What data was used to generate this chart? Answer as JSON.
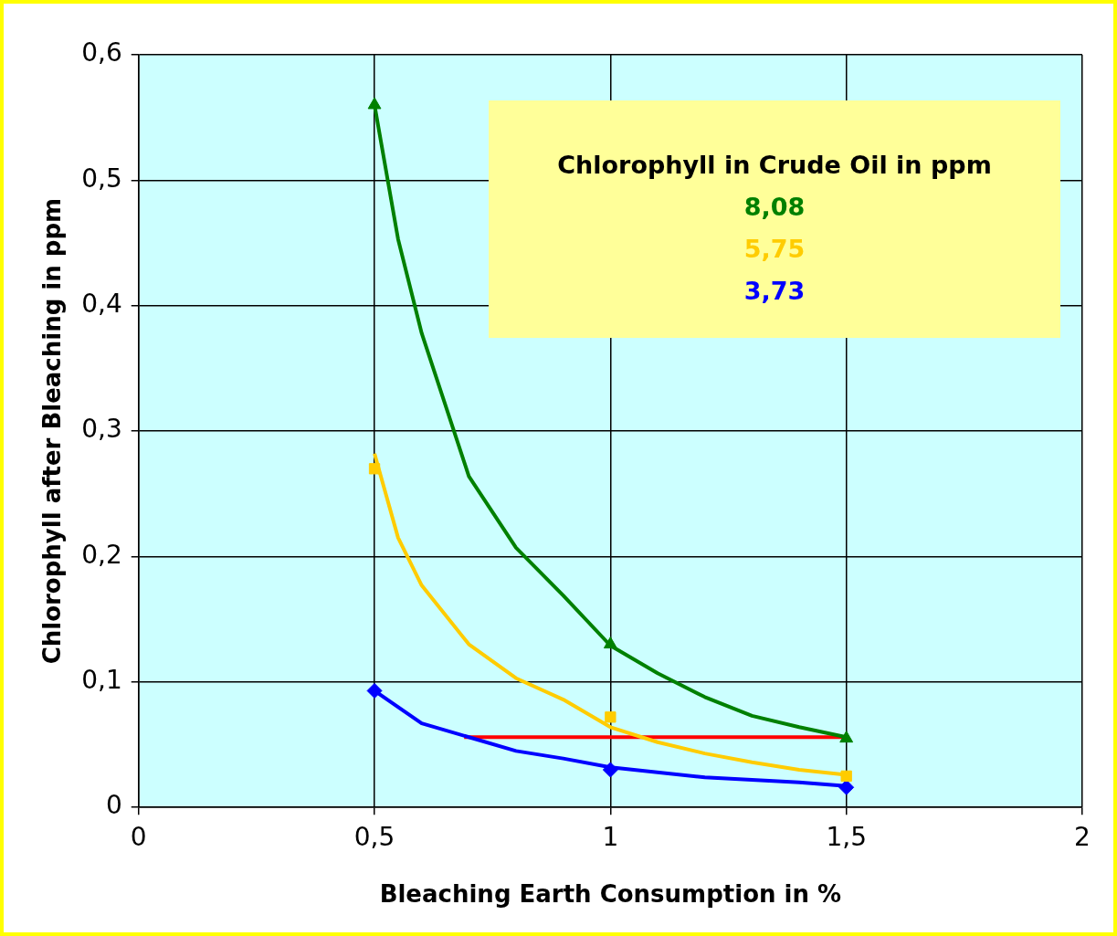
{
  "chart_data": {
    "type": "scatter",
    "xlabel": "Bleaching Earth Consumption in %",
    "ylabel": "Chlorophyll after Bleaching in ppm",
    "legend_title": "Chlorophyll in Crude Oil in ppm",
    "legend": "top right",
    "grid": true,
    "xlim": [
      0,
      2
    ],
    "xticks": [
      0,
      {
        "value": 0.5,
        "label": "0,5"
      },
      1,
      {
        "value": 1.5,
        "label": "1,5"
      },
      2
    ],
    "ylim": [
      0,
      0.6
    ],
    "yticks": [
      0,
      {
        "value": 0.1,
        "label": "0,1"
      },
      {
        "value": 0.2,
        "label": "0,2"
      },
      {
        "value": 0.3,
        "label": "0,3"
      },
      {
        "value": 0.4,
        "label": "0,4"
      },
      {
        "value": 0.5,
        "label": "0,5"
      },
      {
        "value": 0.6,
        "label": "0,6"
      }
    ],
    "series": [
      {
        "type": "line",
        "color": "#008000",
        "x": [
          0.5,
          0.55,
          0.6,
          0.7,
          0.8,
          0.9,
          1.0,
          1.1,
          1.2,
          1.3,
          1.4,
          1.5
        ],
        "values": [
          0.56,
          0.453,
          0.378,
          0.264,
          0.207,
          0.169,
          0.129,
          0.107,
          0.088,
          0.073,
          0.064,
          0.056
        ]
      },
      {
        "type": "line",
        "color": "#ffcc00",
        "x": [
          0.5,
          0.55,
          0.6,
          0.7,
          0.8,
          0.9,
          1.0,
          1.1,
          1.2,
          1.3,
          1.4,
          1.5
        ],
        "values": [
          0.282,
          0.215,
          0.177,
          0.13,
          0.103,
          0.086,
          0.064,
          0.052,
          0.043,
          0.036,
          0.03,
          0.026
        ]
      },
      {
        "type": "line",
        "color": "#0000ff",
        "x": [
          0.5,
          0.6,
          0.7,
          0.8,
          0.9,
          1.0,
          1.2,
          1.4,
          1.5
        ],
        "values": [
          0.093,
          0.067,
          0.056,
          0.045,
          0.039,
          0.032,
          0.024,
          0.02,
          0.017
        ]
      },
      {
        "type": "line",
        "color": "#ff0000",
        "x": [
          0.69,
          1.5
        ],
        "values": [
          0.056,
          0.056
        ]
      },
      {
        "name": "8,08",
        "color": "#008000",
        "marker": "triangle",
        "x": [
          0.5,
          1,
          1.5
        ],
        "values": [
          0.56,
          0.13,
          0.055
        ]
      },
      {
        "name": "5,75",
        "color": "#ffcc00",
        "marker": "square",
        "x": [
          0.5,
          1,
          1.5
        ],
        "values": [
          0.27,
          0.072,
          0.025
        ]
      },
      {
        "name": "3,73",
        "color": "#0000ff",
        "marker": "diamond",
        "x": [
          0.5,
          1,
          1.5
        ],
        "values": [
          0.093,
          0.03,
          0.016
        ]
      }
    ]
  }
}
